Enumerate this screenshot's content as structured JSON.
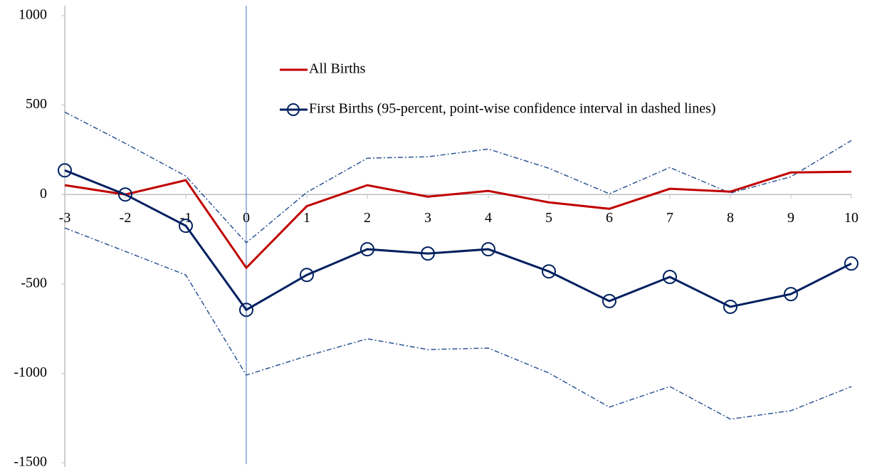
{
  "chart_data": {
    "type": "line",
    "x": [
      -3,
      -2,
      -1,
      0,
      1,
      2,
      3,
      4,
      5,
      6,
      7,
      8,
      9,
      10
    ],
    "xlim": [
      -3,
      10
    ],
    "xticks": [
      -3,
      -2,
      -1,
      0,
      1,
      2,
      3,
      4,
      5,
      6,
      7,
      8,
      9,
      10
    ],
    "ylim": [
      -1500,
      1000
    ],
    "yticks": [
      1000,
      500,
      0,
      -500,
      -1000,
      -1500
    ],
    "vline": 0,
    "series": [
      {
        "name": "All Births",
        "color": "#c00000",
        "values": [
          52,
          0,
          80,
          -410,
          -65,
          52,
          -12,
          20,
          -44,
          -80,
          32,
          16,
          123,
          127
        ]
      },
      {
        "name": "First Births (95-percent, point-wise confidence interval in dashed lines)",
        "color": "#002060",
        "marker": "circle",
        "values": [
          135,
          0,
          -175,
          -645,
          -450,
          -306,
          -330,
          -306,
          -430,
          -596,
          -461,
          -628,
          -557,
          -386
        ]
      }
    ],
    "confidence_interval": {
      "color": "#2e5596",
      "upper": [
        461,
        286,
        103,
        -270,
        12,
        203,
        211,
        254,
        147,
        4,
        151,
        8,
        99,
        302
      ],
      "lower": [
        -187,
        -318,
        -450,
        -1010,
        -903,
        -807,
        -867,
        -859,
        -998,
        -1189,
        -1074,
        -1256,
        -1209,
        -1074
      ]
    }
  }
}
